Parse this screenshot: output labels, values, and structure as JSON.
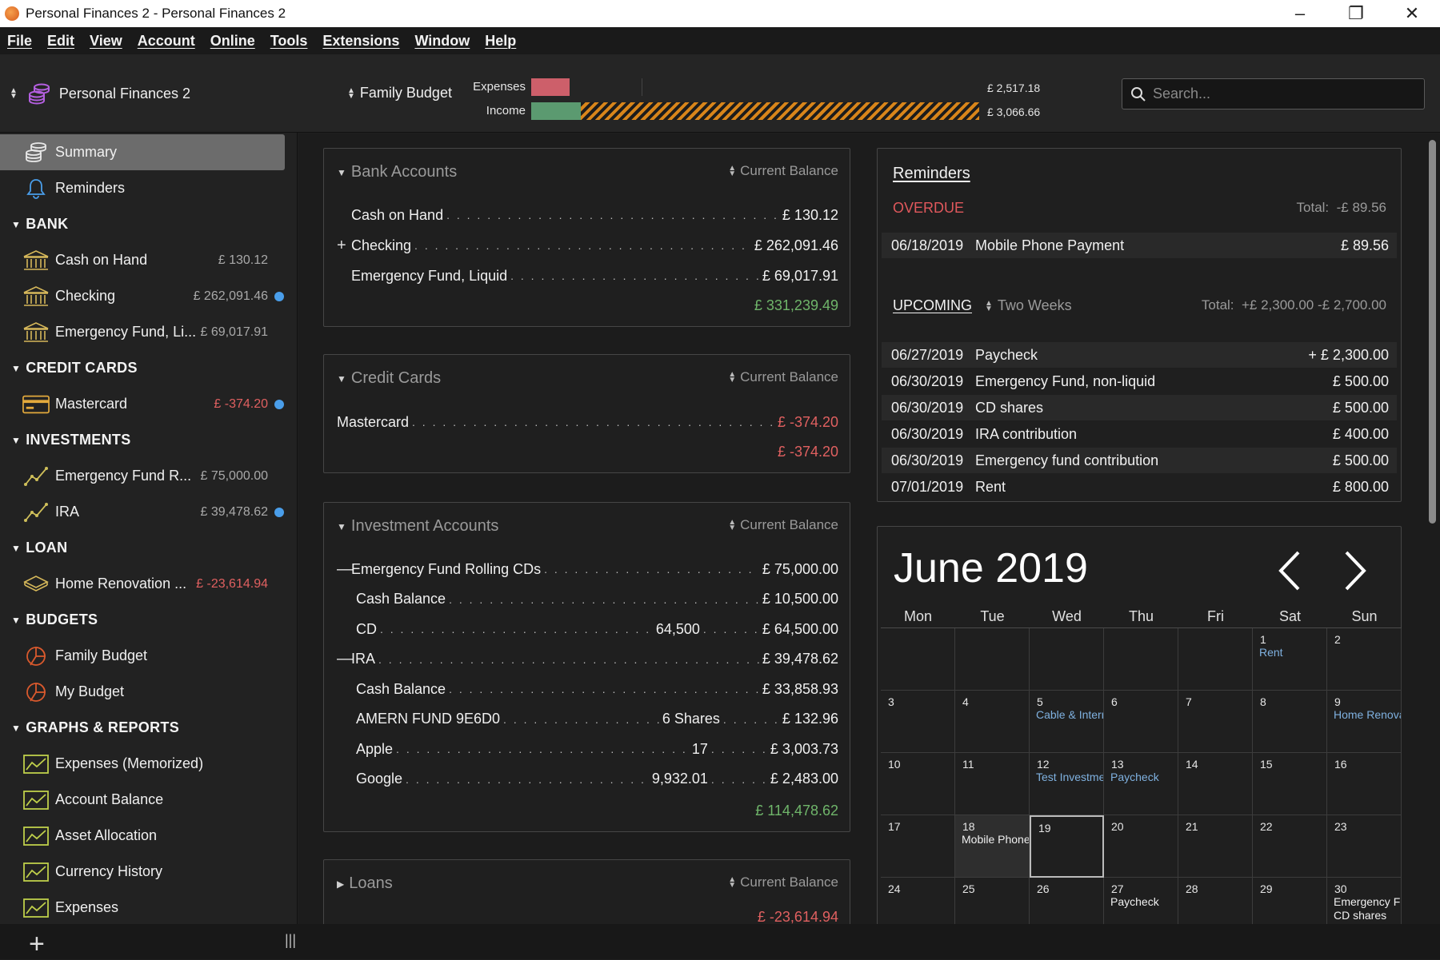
{
  "window": {
    "title": "Personal Finances 2 - Personal Finances 2"
  },
  "menu": [
    "File",
    "Edit",
    "View",
    "Account",
    "Online",
    "Tools",
    "Extensions",
    "Window",
    "Help"
  ],
  "toolbar": {
    "document": "Personal Finances 2",
    "budget": "Family Budget",
    "expenses_label": "Expenses",
    "income_label": "Income",
    "expenses_amount": "£ 2,517.18",
    "income_amount": "£ 3,066.66",
    "expenses_fraction": 0.12,
    "income_fraction": 1.0,
    "search_placeholder": "Search..."
  },
  "sidebar": {
    "top": [
      {
        "label": "Summary",
        "icon": "stack-coins-icon"
      },
      {
        "label": "Reminders",
        "icon": "bell-icon"
      }
    ],
    "groups": [
      {
        "title": "BANK",
        "items": [
          {
            "label": "Cash on Hand",
            "balance": "£ 130.12",
            "icon": "bank-icon",
            "flag": false,
            "negative": false
          },
          {
            "label": "Checking",
            "balance": "£ 262,091.46",
            "icon": "bank-icon",
            "flag": true,
            "negative": false
          },
          {
            "label": "Emergency Fund, Li...",
            "balance": "£ 69,017.91",
            "icon": "bank-icon",
            "flag": false,
            "negative": false
          }
        ]
      },
      {
        "title": "CREDIT CARDS",
        "items": [
          {
            "label": "Mastercard",
            "balance": "£ -374.20",
            "icon": "credit-card-icon",
            "flag": true,
            "negative": true
          }
        ]
      },
      {
        "title": "INVESTMENTS",
        "items": [
          {
            "label": "Emergency Fund R...",
            "balance": "£ 75,000.00",
            "icon": "investment-trend-icon",
            "flag": false,
            "negative": false
          },
          {
            "label": "IRA",
            "balance": "£ 39,478.62",
            "icon": "investment-trend-icon",
            "flag": true,
            "negative": false
          }
        ]
      },
      {
        "title": "LOAN",
        "items": [
          {
            "label": "Home Renovation ...",
            "balance": "£ -23,614.94",
            "icon": "loan-icon",
            "flag": false,
            "negative": true
          }
        ]
      },
      {
        "title": "BUDGETS",
        "items": [
          {
            "label": "Family Budget",
            "balance": "",
            "icon": "budget-icon",
            "flag": false,
            "negative": false
          },
          {
            "label": "My Budget",
            "balance": "",
            "icon": "budget-icon",
            "flag": false,
            "negative": false
          }
        ]
      },
      {
        "title": "GRAPHS & REPORTS",
        "items": [
          {
            "label": "Expenses (Memorized)",
            "balance": "",
            "icon": "graph-icon",
            "flag": false,
            "negative": false
          },
          {
            "label": "Account Balance",
            "balance": "",
            "icon": "graph-icon",
            "flag": false,
            "negative": false
          },
          {
            "label": "Asset Allocation",
            "balance": "",
            "icon": "graph-icon",
            "flag": false,
            "negative": false
          },
          {
            "label": "Currency History",
            "balance": "",
            "icon": "graph-icon",
            "flag": false,
            "negative": false
          },
          {
            "label": "Expenses",
            "balance": "",
            "icon": "graph-icon",
            "flag": false,
            "negative": false
          }
        ]
      }
    ]
  },
  "bank_accounts": {
    "title": "Bank Accounts",
    "sort": "Current Balance",
    "rows": [
      {
        "name": "Cash on Hand",
        "value": "£ 130.12",
        "expander": ""
      },
      {
        "name": "Checking",
        "value": "£ 262,091.46",
        "expander": "+"
      },
      {
        "name": "Emergency Fund, Liquid",
        "value": "£ 69,017.91",
        "expander": ""
      }
    ],
    "total": "£ 331,239.49"
  },
  "credit_cards": {
    "title": "Credit Cards",
    "sort": "Current Balance",
    "rows": [
      {
        "name": "Mastercard",
        "value": "£ -374.20"
      }
    ],
    "total": "£ -374.20"
  },
  "investments": {
    "title": "Investment Accounts",
    "sort": "Current Balance",
    "rows": [
      {
        "name": "Emergency Fund Rolling CDs",
        "mid": "",
        "value": "£ 75,000.00",
        "expander": "—",
        "indent": false
      },
      {
        "name": "Cash Balance",
        "mid": "",
        "value": "£ 10,500.00",
        "expander": "",
        "indent": true
      },
      {
        "name": "CD",
        "mid": "64,500",
        "value": "£ 64,500.00",
        "expander": "",
        "indent": true
      },
      {
        "name": "IRA",
        "mid": "",
        "value": "£ 39,478.62",
        "expander": "—",
        "indent": false
      },
      {
        "name": "Cash Balance",
        "mid": "",
        "value": "£ 33,858.93",
        "expander": "",
        "indent": true
      },
      {
        "name": "AMERN FUND 9E6D0",
        "mid": "6 Shares",
        "value": "£ 132.96",
        "expander": "",
        "indent": true
      },
      {
        "name": "Apple",
        "mid": "17",
        "value": "£ 3,003.73",
        "expander": "",
        "indent": true
      },
      {
        "name": "Google",
        "mid": "9,932.01",
        "value": "£ 2,483.00",
        "expander": "",
        "indent": true
      }
    ],
    "total": "£ 114,478.62"
  },
  "loans": {
    "title": "Loans",
    "sort": "Current Balance",
    "total": "£ -23,614.94"
  },
  "reminders": {
    "title": "Reminders",
    "overdue_label": "OVERDUE",
    "overdue_total_label": "Total:",
    "overdue_total": "-£ 89.56",
    "overdue": [
      {
        "date": "06/18/2019",
        "title": "Mobile Phone Payment",
        "amount": "£ 89.56"
      }
    ],
    "upcoming_label": "UPCOMING",
    "upcoming_range": "Two Weeks",
    "upcoming_total_label": "Total:",
    "upcoming_total": "+£ 2,300.00 -£ 2,700.00",
    "upcoming": [
      {
        "date": "06/27/2019",
        "title": "Paycheck",
        "amount": "+ £ 2,300.00"
      },
      {
        "date": "06/30/2019",
        "title": "Emergency Fund, non-liquid",
        "amount": "£ 500.00"
      },
      {
        "date": "06/30/2019",
        "title": "CD shares",
        "amount": "£ 500.00"
      },
      {
        "date": "06/30/2019",
        "title": "IRA contribution",
        "amount": "£ 400.00"
      },
      {
        "date": "06/30/2019",
        "title": "Emergency fund contribution",
        "amount": "£ 500.00"
      },
      {
        "date": "07/01/2019",
        "title": "Rent",
        "amount": "£ 800.00"
      }
    ]
  },
  "calendar": {
    "month": "June 2019",
    "weekdays": [
      "Mon",
      "Tue",
      "Wed",
      "Thu",
      "Fri",
      "Sat",
      "Sun"
    ],
    "today": "19",
    "weeks": [
      [
        {
          "d": "",
          "ev": []
        },
        {
          "d": "",
          "ev": []
        },
        {
          "d": "",
          "ev": []
        },
        {
          "d": "",
          "ev": []
        },
        {
          "d": "",
          "ev": []
        },
        {
          "d": "1",
          "ev": [
            {
              "t": "Rent",
              "c": "blue"
            }
          ]
        },
        {
          "d": "2",
          "ev": []
        }
      ],
      [
        {
          "d": "3",
          "ev": []
        },
        {
          "d": "4",
          "ev": []
        },
        {
          "d": "5",
          "ev": [
            {
              "t": "Cable & Internet",
              "c": "blue"
            }
          ]
        },
        {
          "d": "6",
          "ev": []
        },
        {
          "d": "7",
          "ev": []
        },
        {
          "d": "8",
          "ev": []
        },
        {
          "d": "9",
          "ev": [
            {
              "t": "Home Renovation",
              "c": "blue"
            }
          ]
        }
      ],
      [
        {
          "d": "10",
          "ev": []
        },
        {
          "d": "11",
          "ev": []
        },
        {
          "d": "12",
          "ev": [
            {
              "t": "Test Investment",
              "c": "blue"
            }
          ]
        },
        {
          "d": "13",
          "ev": [
            {
              "t": "Paycheck",
              "c": "blue"
            }
          ]
        },
        {
          "d": "14",
          "ev": []
        },
        {
          "d": "15",
          "ev": []
        },
        {
          "d": "16",
          "ev": []
        }
      ],
      [
        {
          "d": "17",
          "ev": []
        },
        {
          "d": "18",
          "ev": [
            {
              "t": "Mobile Phone",
              "c": "white"
            }
          ],
          "shade": true
        },
        {
          "d": "19",
          "ev": []
        },
        {
          "d": "20",
          "ev": []
        },
        {
          "d": "21",
          "ev": []
        },
        {
          "d": "22",
          "ev": []
        },
        {
          "d": "23",
          "ev": []
        }
      ],
      [
        {
          "d": "24",
          "ev": []
        },
        {
          "d": "25",
          "ev": []
        },
        {
          "d": "26",
          "ev": []
        },
        {
          "d": "27",
          "ev": [
            {
              "t": "Paycheck",
              "c": "white"
            }
          ]
        },
        {
          "d": "28",
          "ev": []
        },
        {
          "d": "29",
          "ev": []
        },
        {
          "d": "30",
          "ev": [
            {
              "t": "Emergency Fund",
              "c": "white"
            },
            {
              "t": "CD shares",
              "c": "white"
            }
          ]
        }
      ]
    ]
  },
  "colors": {
    "positive": "#6fb56a",
    "negative": "#e06060",
    "link": "#7fb1e0",
    "accent": "#d88a1e"
  }
}
